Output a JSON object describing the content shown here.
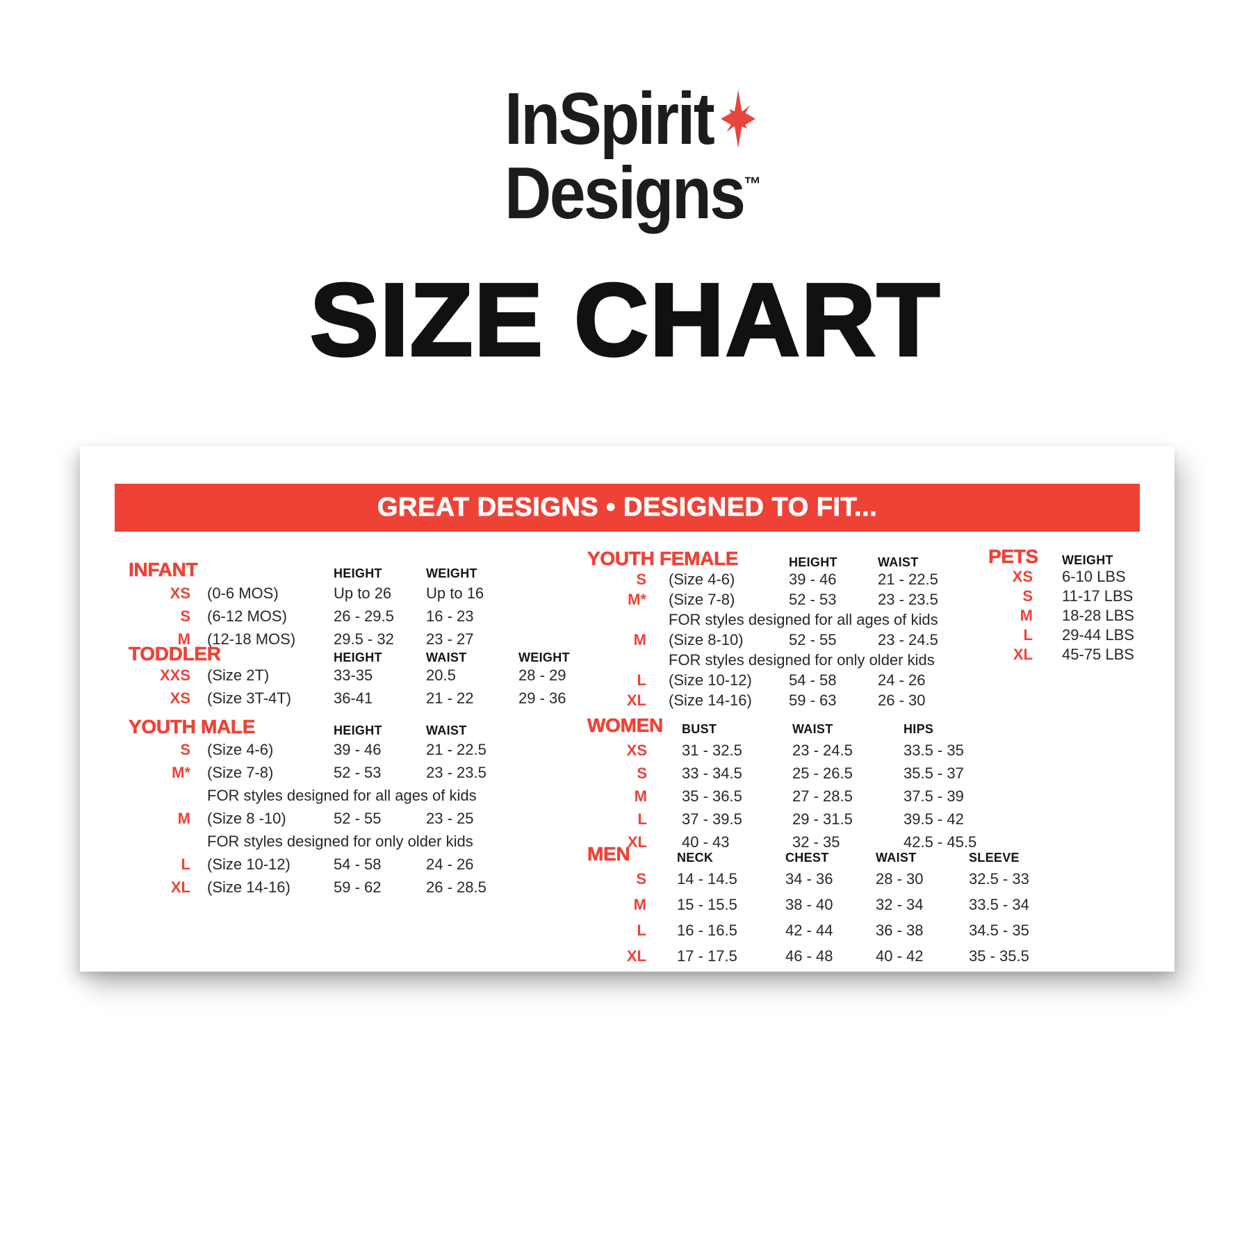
{
  "logo": {
    "line1": "InSpirit",
    "line2": "Designs",
    "tm": "™"
  },
  "title": "SIZE CHART",
  "banner": {
    "text": "GREAT DESIGNS • DESIGNED TO FIT..."
  },
  "colors": {
    "brand_red": "#ee4237",
    "banner_text": "#ffffff",
    "body_text": "#2a2627"
  },
  "sections": {
    "infant": {
      "title": "INFANT",
      "headers": [
        "HEIGHT",
        "WEIGHT"
      ],
      "rows": [
        {
          "size": "XS",
          "desc": "(0-6 MOS)",
          "values": [
            "Up to 26",
            "Up to 16"
          ]
        },
        {
          "size": "S",
          "desc": "(6-12 MOS)",
          "values": [
            "26 - 29.5",
            "16 - 23"
          ]
        },
        {
          "size": "M",
          "desc": "(12-18 MOS)",
          "values": [
            "29.5 - 32",
            "23 - 27"
          ]
        }
      ]
    },
    "toddler": {
      "title": "TODDLER",
      "headers": [
        "HEIGHT",
        "WAIST",
        "WEIGHT"
      ],
      "rows": [
        {
          "size": "XXS",
          "desc": "(Size 2T)",
          "values": [
            "33-35",
            "20.5",
            "28 - 29"
          ]
        },
        {
          "size": "XS",
          "desc": "(Size 3T-4T)",
          "values": [
            "36-41",
            "21 - 22",
            "29 - 36"
          ]
        }
      ]
    },
    "youth_male": {
      "title": "YOUTH MALE",
      "headers": [
        "HEIGHT",
        "WAIST"
      ],
      "rows": [
        {
          "size": "S",
          "desc": "(Size 4-6)",
          "values": [
            "39 - 46",
            "21 - 22.5"
          ]
        },
        {
          "size": "M*",
          "desc": "(Size 7-8)",
          "values": [
            "52 - 53",
            "23 - 23.5"
          ]
        },
        {
          "note": "FOR styles designed for all ages of kids"
        },
        {
          "size": "M",
          "desc": "(Size 8 -10)",
          "values": [
            "52 - 55",
            "23 - 25"
          ]
        },
        {
          "note": "FOR styles designed for only older kids"
        },
        {
          "size": "L",
          "desc": "(Size 10-12)",
          "values": [
            "54 - 58",
            "24 - 26"
          ]
        },
        {
          "size": "XL",
          "desc": "(Size 14-16)",
          "values": [
            "59 - 62",
            "26 - 28.5"
          ]
        }
      ]
    },
    "youth_female": {
      "title": "YOUTH FEMALE",
      "headers": [
        "HEIGHT",
        "WAIST"
      ],
      "rows": [
        {
          "size": "S",
          "desc": "(Size 4-6)",
          "values": [
            "39 - 46",
            "21 - 22.5"
          ]
        },
        {
          "size": "M*",
          "desc": "(Size 7-8)",
          "values": [
            "52 - 53",
            "23 - 23.5"
          ]
        },
        {
          "note": "FOR styles designed for all ages of kids"
        },
        {
          "size": "M",
          "desc": "(Size 8-10)",
          "values": [
            "52 - 55",
            "23 - 24.5"
          ]
        },
        {
          "note": "FOR styles designed for only older kids"
        },
        {
          "size": "L",
          "desc": "(Size 10-12)",
          "values": [
            "54 - 58",
            "24 - 26"
          ]
        },
        {
          "size": "XL",
          "desc": "(Size 14-16)",
          "values": [
            "59 - 63",
            "26 - 30"
          ]
        }
      ]
    },
    "women": {
      "title": "WOMEN",
      "headers": [
        "BUST",
        "WAIST",
        "HIPS"
      ],
      "rows": [
        {
          "size": "XS",
          "values": [
            "31 - 32.5",
            "23 - 24.5",
            "33.5 - 35"
          ]
        },
        {
          "size": "S",
          "values": [
            "33 - 34.5",
            "25 - 26.5",
            "35.5 - 37"
          ]
        },
        {
          "size": "M",
          "values": [
            "35 - 36.5",
            "27 - 28.5",
            "37.5 - 39"
          ]
        },
        {
          "size": "L",
          "values": [
            "37 - 39.5",
            "29 - 31.5",
            "39.5 - 42"
          ]
        },
        {
          "size": "XL",
          "values": [
            "40 - 43",
            "32 - 35",
            "42.5 - 45.5"
          ]
        }
      ]
    },
    "men": {
      "title": "MEN",
      "headers": [
        "NECK",
        "CHEST",
        "WAIST",
        "SLEEVE"
      ],
      "rows": [
        {
          "size": "S",
          "values": [
            "14 - 14.5",
            "34 - 36",
            "28 - 30",
            "32.5 - 33"
          ]
        },
        {
          "size": "M",
          "values": [
            "15 - 15.5",
            "38 - 40",
            "32 - 34",
            "33.5 - 34"
          ]
        },
        {
          "size": "L",
          "values": [
            "16 - 16.5",
            "42 - 44",
            "36 - 38",
            "34.5 - 35"
          ]
        },
        {
          "size": "XL",
          "values": [
            "17 - 17.5",
            "46 - 48",
            "40 - 42",
            "35 - 35.5"
          ]
        }
      ]
    },
    "pets": {
      "title": "PETS",
      "headers": [
        "WEIGHT"
      ],
      "rows": [
        {
          "size": "XS",
          "values": [
            "6-10 LBS"
          ]
        },
        {
          "size": "S",
          "values": [
            "11-17 LBS"
          ]
        },
        {
          "size": "M",
          "values": [
            "18-28 LBS"
          ]
        },
        {
          "size": "L",
          "values": [
            "29-44 LBS"
          ]
        },
        {
          "size": "XL",
          "values": [
            "45-75 LBS"
          ]
        }
      ]
    }
  }
}
